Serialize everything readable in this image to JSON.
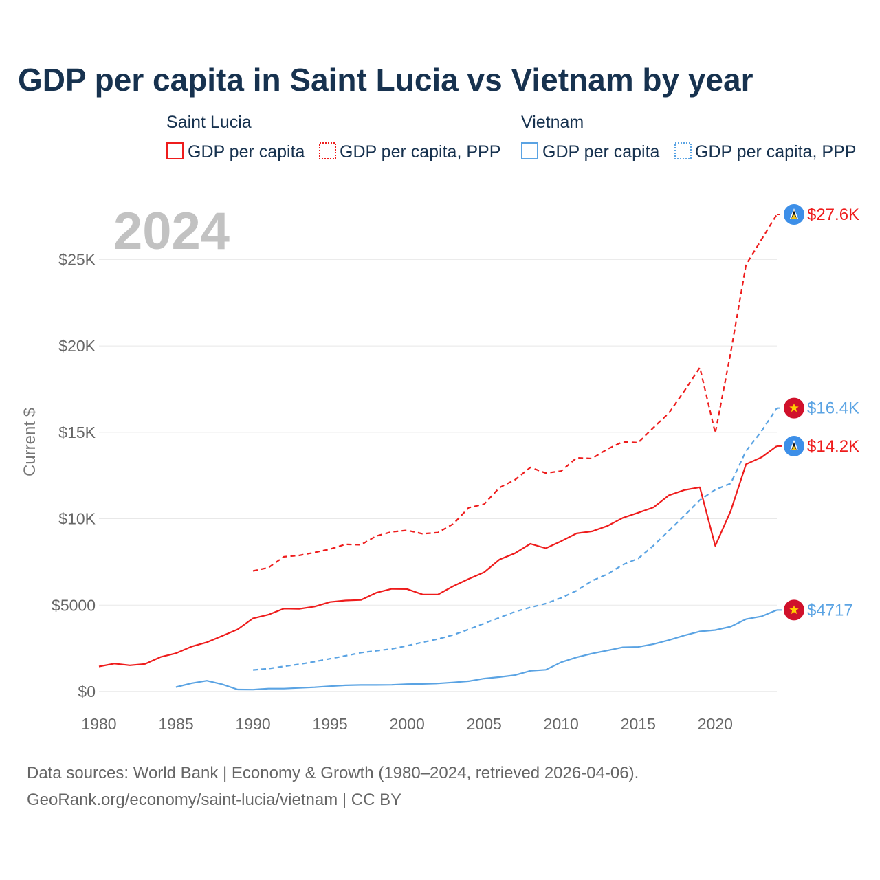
{
  "chart_data": {
    "type": "line",
    "title": "GDP per capita in Saint Lucia vs Vietnam by year",
    "current_year": "2024",
    "ylabel": "Current $",
    "xlabel": "",
    "xlim": [
      1980,
      2024
    ],
    "ylim": [
      0,
      27600
    ],
    "x_ticks": [
      {
        "value": 1980,
        "label": "1980"
      },
      {
        "value": 1985,
        "label": "1985"
      },
      {
        "value": 1990,
        "label": "1990"
      },
      {
        "value": 1995,
        "label": "1995"
      },
      {
        "value": 2000,
        "label": "2000"
      },
      {
        "value": 2005,
        "label": "2005"
      },
      {
        "value": 2010,
        "label": "2010"
      },
      {
        "value": 2015,
        "label": "2015"
      },
      {
        "value": 2020,
        "label": "2020"
      }
    ],
    "y_ticks": [
      {
        "value": 0,
        "label": "$0"
      },
      {
        "value": 5000,
        "label": "$5000"
      },
      {
        "value": 10000,
        "label": "$10K"
      },
      {
        "value": 15000,
        "label": "$15K"
      },
      {
        "value": 20000,
        "label": "$20K"
      },
      {
        "value": 25000,
        "label": "$25K"
      }
    ],
    "legend": {
      "groups": [
        {
          "name": "Saint Lucia",
          "items": [
            "GDP per capita",
            "GDP per capita, PPP"
          ]
        },
        {
          "name": "Vietnam",
          "items": [
            "GDP per capita",
            "GDP per capita, PPP"
          ]
        }
      ]
    },
    "series": [
      {
        "name": "Saint Lucia GDP per capita",
        "country": "Saint Lucia",
        "color": "#ee1c1c",
        "dash": "solid",
        "flag": "saint-lucia-flag-icon",
        "end_label": "$14.2K",
        "start_year": 1980,
        "values": [
          1450,
          1620,
          1520,
          1600,
          2000,
          2220,
          2600,
          2850,
          3220,
          3600,
          4240,
          4450,
          4800,
          4790,
          4920,
          5180,
          5270,
          5300,
          5720,
          5940,
          5930,
          5620,
          5610,
          6100,
          6520,
          6900,
          7640,
          8000,
          8550,
          8290,
          8700,
          9150,
          9270,
          9580,
          10050,
          10350,
          10660,
          11360,
          11660,
          11820,
          8430,
          10440,
          13150,
          13550,
          14200
        ]
      },
      {
        "name": "Saint Lucia GDP per capita, PPP",
        "country": "Saint Lucia",
        "color": "#ee1c1c",
        "dash": "dashed",
        "flag": "saint-lucia-flag-icon",
        "end_label": "$27.6K",
        "start_year": 1990,
        "values": [
          6980,
          7170,
          7800,
          7880,
          8050,
          8240,
          8520,
          8490,
          9000,
          9240,
          9330,
          9130,
          9200,
          9700,
          10640,
          10840,
          11800,
          12250,
          12970,
          12640,
          12760,
          13520,
          13480,
          14030,
          14450,
          14400,
          15280,
          16120,
          17400,
          18750,
          14950,
          19600,
          24700,
          26150,
          27600
        ]
      },
      {
        "name": "Vietnam GDP per capita",
        "country": "Vietnam",
        "color": "#5aa3e3",
        "dash": "solid",
        "flag": "vietnam-flag-icon",
        "end_label": "$4717",
        "start_year": 1985,
        "values": [
          260,
          480,
          630,
          420,
          120,
          110,
          170,
          170,
          210,
          250,
          310,
          360,
          380,
          380,
          390,
          430,
          440,
          470,
          530,
          600,
          750,
          840,
          950,
          1200,
          1260,
          1700,
          1980,
          2200,
          2380,
          2560,
          2580,
          2750,
          2980,
          3250,
          3480,
          3560,
          3760,
          4190,
          4350,
          4717
        ]
      },
      {
        "name": "Vietnam GDP per capita, PPP",
        "country": "Vietnam",
        "color": "#5aa3e3",
        "dash": "dashed",
        "flag": "vietnam-flag-icon",
        "end_label": "$16.4K",
        "start_year": 1990,
        "values": [
          1250,
          1330,
          1460,
          1580,
          1730,
          1900,
          2070,
          2250,
          2360,
          2470,
          2650,
          2850,
          3040,
          3280,
          3600,
          3940,
          4280,
          4620,
          4870,
          5090,
          5420,
          5840,
          6410,
          6790,
          7340,
          7700,
          8450,
          9310,
          10180,
          11080,
          11680,
          12040,
          13920,
          15060,
          16400
        ]
      }
    ]
  },
  "footer": {
    "line1": "Data sources: World Bank | Economy & Growth (1980–2024, retrieved 2026-04-06).",
    "line2": "GeoRank.org/economy/saint-lucia/vietnam | CC BY"
  }
}
